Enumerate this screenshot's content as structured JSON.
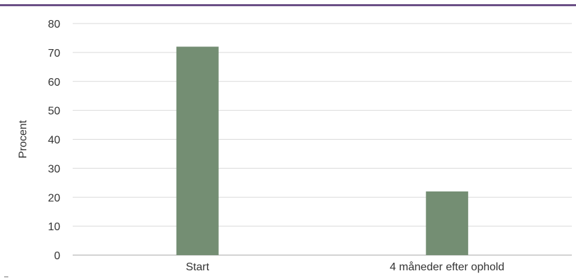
{
  "chart_data": {
    "type": "bar",
    "categories": [
      "Start",
      "4 måneder efter ophold"
    ],
    "values": [
      72,
      22
    ],
    "title": "",
    "xlabel": "",
    "ylabel": "Procent",
    "ylim": [
      0,
      80
    ],
    "yticks": [
      0,
      10,
      20,
      30,
      40,
      50,
      60,
      70,
      80
    ],
    "grid": true,
    "legend": "none",
    "bar_color": "#748e73",
    "grid_color": "#d9d9d9",
    "axis_color": "#a6a6a6",
    "rule_color": "#6b4f86"
  }
}
